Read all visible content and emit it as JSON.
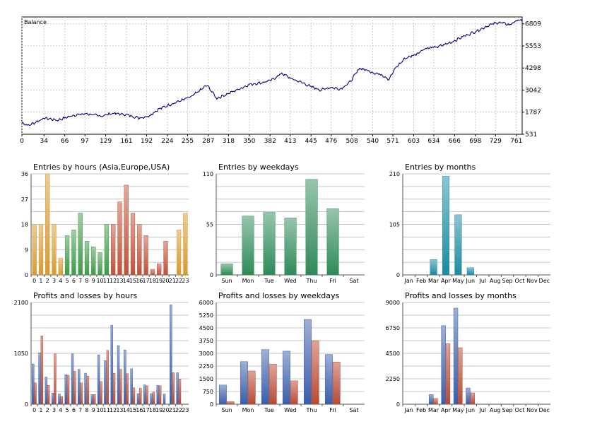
{
  "balance": {
    "type": "line",
    "title": "Balance",
    "x_ticks": [
      "0",
      "34",
      "66",
      "97",
      "129",
      "161",
      "192",
      "224",
      "255",
      "287",
      "318",
      "350",
      "382",
      "413",
      "445",
      "476",
      "508",
      "540",
      "571",
      "603",
      "634",
      "666",
      "698",
      "729",
      "761"
    ],
    "y_ticks": [
      "531",
      "1787",
      "3042",
      "4298",
      "5553",
      "6809"
    ],
    "xlim": [
      0,
      770
    ],
    "ylim": [
      531,
      7200
    ],
    "line_color": "#000080",
    "keypoints": [
      [
        0,
        1190
      ],
      [
        10,
        1030
      ],
      [
        35,
        1450
      ],
      [
        55,
        1330
      ],
      [
        80,
        1620
      ],
      [
        100,
        1700
      ],
      [
        120,
        1560
      ],
      [
        140,
        1720
      ],
      [
        160,
        1650
      ],
      [
        180,
        1460
      ],
      [
        195,
        1560
      ],
      [
        210,
        1950
      ],
      [
        230,
        2250
      ],
      [
        260,
        2650
      ],
      [
        285,
        3320
      ],
      [
        300,
        2570
      ],
      [
        320,
        2880
      ],
      [
        350,
        3360
      ],
      [
        370,
        3470
      ],
      [
        385,
        3620
      ],
      [
        400,
        4000
      ],
      [
        415,
        3680
      ],
      [
        430,
        3490
      ],
      [
        445,
        3230
      ],
      [
        460,
        3050
      ],
      [
        475,
        3200
      ],
      [
        490,
        3100
      ],
      [
        505,
        3500
      ],
      [
        520,
        4300
      ],
      [
        540,
        4050
      ],
      [
        555,
        3900
      ],
      [
        565,
        3650
      ],
      [
        575,
        4300
      ],
      [
        590,
        4850
      ],
      [
        605,
        5050
      ],
      [
        620,
        5400
      ],
      [
        640,
        5500
      ],
      [
        660,
        5750
      ],
      [
        680,
        6100
      ],
      [
        700,
        6400
      ],
      [
        720,
        6750
      ],
      [
        735,
        6900
      ],
      [
        750,
        6750
      ],
      [
        765,
        7050
      ],
      [
        770,
        6950
      ]
    ]
  },
  "panels": [
    {
      "title": "Entries by hours (Asia,Europe,USA)",
      "type": "bar",
      "categories": [
        "0",
        "1",
        "2",
        "3",
        "4",
        "5",
        "6",
        "7",
        "8",
        "9",
        "10",
        "11",
        "12",
        "13",
        "14",
        "15",
        "16",
        "17",
        "18",
        "19",
        "20",
        "21",
        "22",
        "23"
      ],
      "y_ticks": [
        "0",
        "9",
        "18",
        "27",
        "36"
      ],
      "ylim": [
        0,
        36
      ],
      "values": [
        18,
        18,
        36,
        18,
        6,
        14,
        16,
        22,
        12,
        10,
        8,
        18,
        18,
        26,
        32,
        22,
        18,
        14,
        2,
        4,
        12,
        0,
        16,
        22
      ],
      "colors": [
        "#d89a30",
        "#d89a30",
        "#d89a30",
        "#d89a30",
        "#d89a30",
        "#3e9a48",
        "#3e9a48",
        "#3e9a48",
        "#3e9a48",
        "#3e9a48",
        "#3e9a48",
        "#3e9a48",
        "#c05038",
        "#c05038",
        "#c05038",
        "#c05038",
        "#c05038",
        "#c05038",
        "#c05038",
        "#c05038",
        "#c05038",
        "#d89a30",
        "#d89a30",
        "#d89a30"
      ]
    },
    {
      "title": "Entries by weekdays",
      "type": "bar",
      "categories": [
        "Sun",
        "Mon",
        "Tue",
        "Wed",
        "Thu",
        "Fri",
        "Sat"
      ],
      "y_ticks": [
        "0",
        "55",
        "110"
      ],
      "ylim": [
        0,
        110
      ],
      "values": [
        12,
        64,
        68,
        62,
        104,
        72,
        0
      ],
      "colors": [
        "#2e8a58",
        "#2e8a58",
        "#2e8a58",
        "#2e8a58",
        "#2e8a58",
        "#2e8a58",
        "#2e8a58"
      ]
    },
    {
      "title": "Entries by months",
      "type": "bar",
      "categories": [
        "Jan",
        "Feb",
        "Mar",
        "Apr",
        "May",
        "Jun",
        "Jul",
        "Aug",
        "Sep",
        "Oct",
        "Nov",
        "Dec"
      ],
      "y_ticks": [
        "0",
        "105",
        "210"
      ],
      "ylim": [
        0,
        210
      ],
      "values": [
        0,
        0,
        32,
        205,
        125,
        15,
        0,
        0,
        0,
        0,
        0,
        0
      ],
      "colors": [
        "#1a8aa0",
        "#1a8aa0",
        "#1a8aa0",
        "#1a8aa0",
        "#1a8aa0",
        "#1a8aa0",
        "#1a8aa0",
        "#1a8aa0",
        "#1a8aa0",
        "#1a8aa0",
        "#1a8aa0",
        "#1a8aa0"
      ]
    },
    {
      "title": "Profits and losses by hours",
      "type": "grouped-bar",
      "categories": [
        "0",
        "1",
        "2",
        "3",
        "4",
        "5",
        "6",
        "7",
        "8",
        "9",
        "10",
        "11",
        "12",
        "13",
        "14",
        "15",
        "16",
        "17",
        "18",
        "19",
        "20",
        "21",
        "22",
        "23"
      ],
      "y_ticks": [
        "0",
        "1050",
        "2100"
      ],
      "ylim": [
        0,
        2100
      ],
      "series": [
        {
          "values": [
            830,
            1060,
            560,
            230,
            210,
            610,
            1040,
            720,
            640,
            200,
            1020,
            900,
            1630,
            1210,
            1120,
            730,
            220,
            400,
            220,
            390,
            210,
            2050,
            650,
            0
          ],
          "color": "#3a5ea8"
        },
        {
          "values": [
            440,
            1410,
            390,
            1040,
            160,
            600,
            680,
            440,
            580,
            200,
            470,
            1110,
            640,
            720,
            630,
            340,
            330,
            380,
            250,
            380,
            0,
            650,
            520,
            0
          ],
          "color": "#b84a34"
        }
      ]
    },
    {
      "title": "Profits and losses by weekdays",
      "type": "grouped-bar",
      "categories": [
        "Sun",
        "Mon",
        "Tue",
        "Wed",
        "Thu",
        "Fri",
        "Sat"
      ],
      "y_ticks": [
        "0",
        "750",
        "1500",
        "2250",
        "3000",
        "3750",
        "4500",
        "5250",
        "6000"
      ],
      "ylim": [
        0,
        6000
      ],
      "series": [
        {
          "values": [
            1130,
            2510,
            3220,
            3130,
            5000,
            2930,
            0
          ],
          "color": "#3a5ea8"
        },
        {
          "values": [
            150,
            1960,
            2360,
            1380,
            3750,
            2490,
            0
          ],
          "color": "#b84a34"
        }
      ]
    },
    {
      "title": "Profits and losses by months",
      "type": "grouped-bar",
      "categories": [
        "Jan",
        "Feb",
        "Mar",
        "Apr",
        "May",
        "Jun",
        "Jul",
        "Aug",
        "Sep",
        "Oct",
        "Nov",
        "Dec"
      ],
      "y_ticks": [
        "0",
        "2250",
        "4500",
        "6750",
        "9000"
      ],
      "ylim": [
        0,
        9000
      ],
      "series": [
        {
          "values": [
            0,
            0,
            850,
            6950,
            8500,
            1430,
            0,
            0,
            0,
            0,
            0,
            0
          ],
          "color": "#3a5ea8"
        },
        {
          "values": [
            0,
            0,
            510,
            5350,
            5000,
            1000,
            0,
            0,
            0,
            0,
            0,
            0
          ],
          "color": "#b84a34"
        }
      ]
    }
  ]
}
